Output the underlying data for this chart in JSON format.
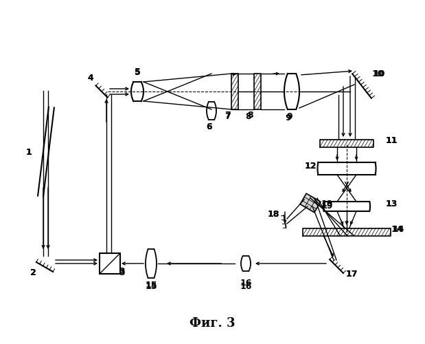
{
  "title": "Фиг. 3",
  "bg": "#ffffff",
  "lc": "#000000",
  "fig_w": 6.19,
  "fig_h": 5.0,
  "dpi": 100
}
